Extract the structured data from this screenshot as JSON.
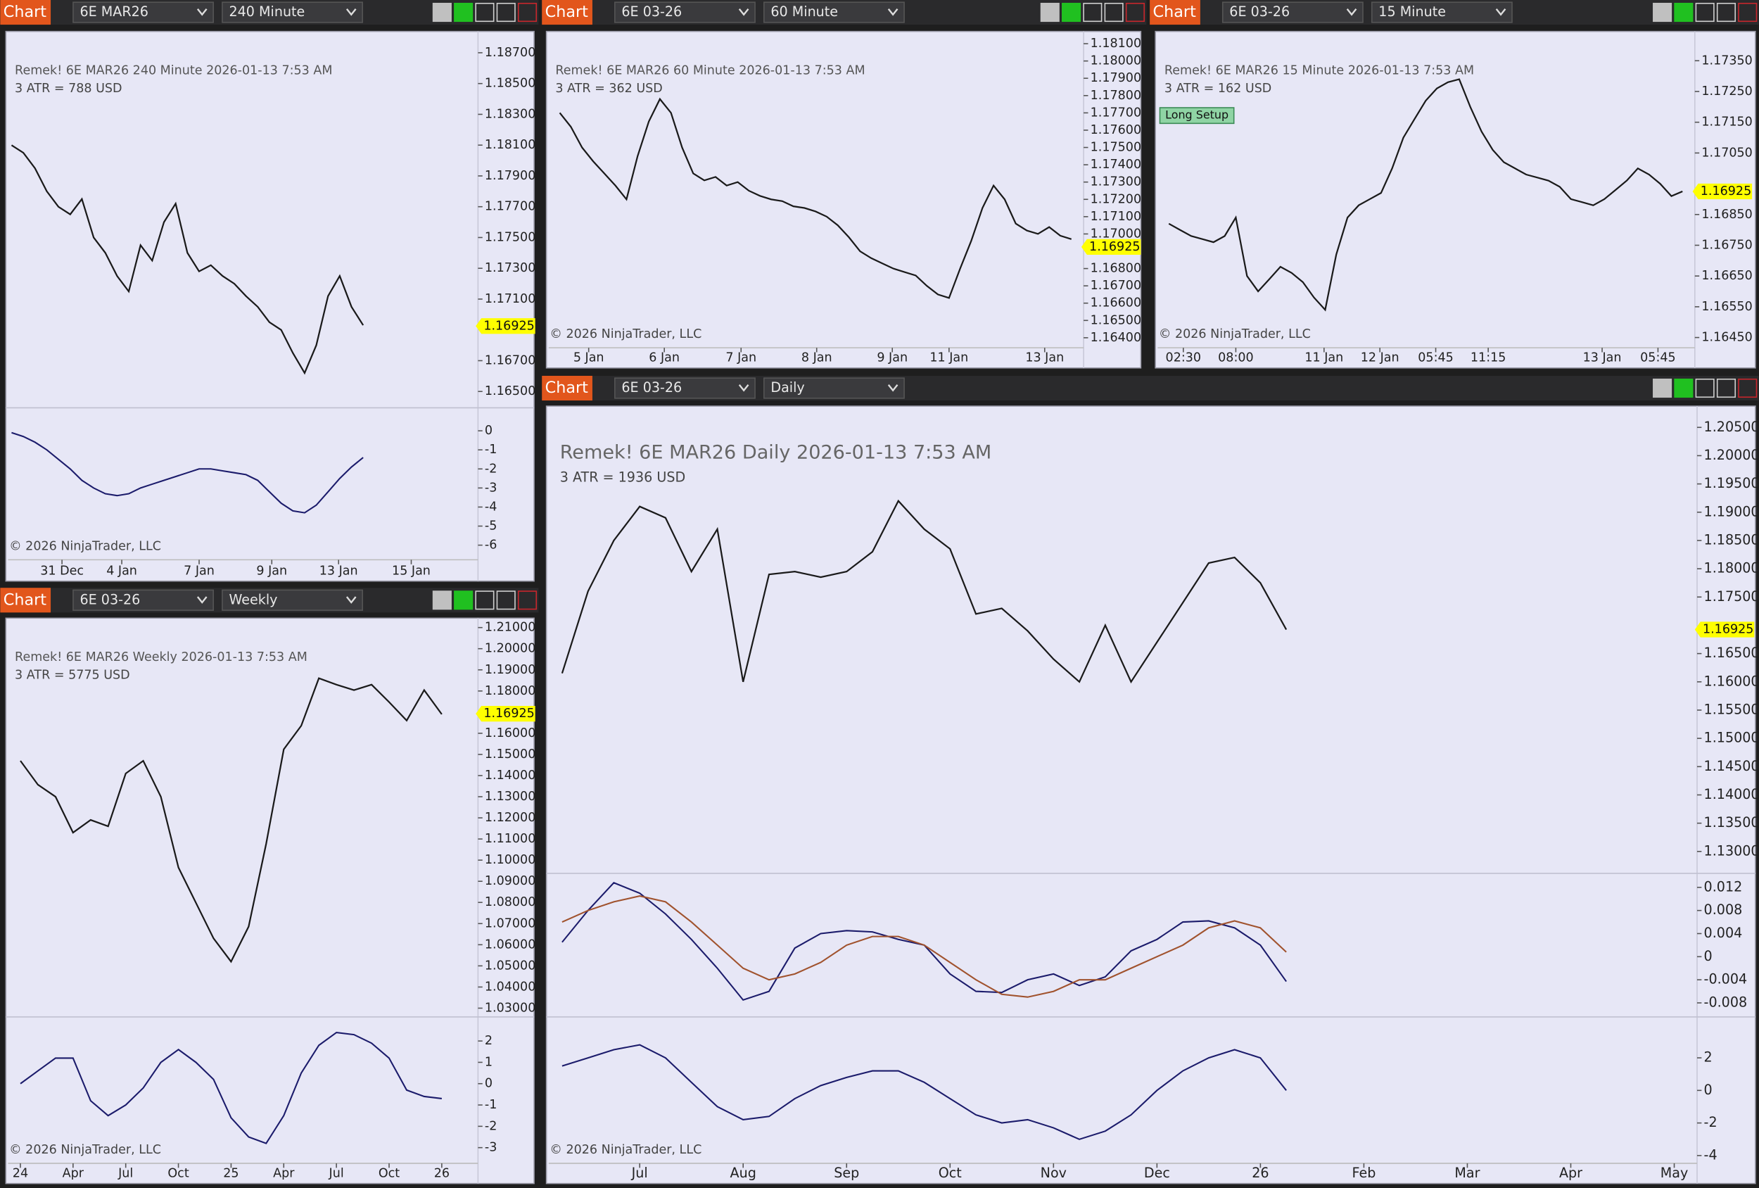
{
  "panels": [
    {
      "tab": "Chart",
      "instrument": "6E MAR26",
      "interval": "240 Minute",
      "header": "Remek!  6E MAR26  240 Minute  2026-01-13 7:53 AM",
      "atr": "3 ATR = 788 USD",
      "copyright": "© 2026 NinjaTrader, LLC",
      "last": 1.16925,
      "ylim": [
        1.16405,
        1.18824
      ],
      "yticks": [
        {
          "value": 1.187,
          "label": "1.18700"
        },
        {
          "value": 1.185,
          "label": "1.18500"
        },
        {
          "value": 1.183,
          "label": "1.18300"
        },
        {
          "value": 1.181,
          "label": "1.18100"
        },
        {
          "value": 1.179,
          "label": "1.17900"
        },
        {
          "value": 1.177,
          "label": "1.17700"
        },
        {
          "value": 1.175,
          "label": "1.17500"
        },
        {
          "value": 1.173,
          "label": "1.17300"
        },
        {
          "value": 1.171,
          "label": "1.17100"
        },
        {
          "value": 1.167,
          "label": "1.16700"
        },
        {
          "value": 1.165,
          "label": "1.16500"
        }
      ],
      "xlim": [
        -0.3,
        39.7
      ],
      "xticks": [
        {
          "value": 4.3,
          "label": "31 Dec"
        },
        {
          "value": 9.4,
          "label": "4 Jan"
        },
        {
          "value": 16.0,
          "label": "7 Jan"
        },
        {
          "value": 22.2,
          "label": "9 Jan"
        },
        {
          "value": 27.9,
          "label": "13 Jan"
        },
        {
          "value": 34.1,
          "label": "15 Jan"
        }
      ],
      "closes": [
        1.181,
        1.1805,
        1.1795,
        1.178,
        1.177,
        1.1765,
        1.1775,
        1.175,
        1.174,
        1.1725,
        1.1715,
        1.1745,
        1.1735,
        1.176,
        1.1772,
        1.174,
        1.1728,
        1.1732,
        1.1725,
        1.172,
        1.1712,
        1.1705,
        1.1695,
        1.169,
        1.1675,
        1.1662,
        1.168,
        1.1712,
        1.1725,
        1.1705,
        1.1693
      ],
      "indicators": [
        {
          "ylim": [
            -6.65,
            1.12
          ],
          "yticks": [
            0,
            -1,
            -2,
            -3,
            -4,
            -5,
            -6
          ],
          "series": [
            {
              "color": "#1b1b6b",
              "values": [
                -0.1,
                -0.3,
                -0.6,
                -1,
                -1.5,
                -2,
                -2.6,
                -3,
                -3.3,
                -3.4,
                -3.3,
                -3,
                -2.8,
                -2.6,
                -2.4,
                -2.2,
                -2,
                -2,
                -2.1,
                -2.2,
                -2.3,
                -2.6,
                -3.2,
                -3.8,
                -4.2,
                -4.3,
                -3.9,
                -3.2,
                -2.5,
                -1.9,
                -1.4
              ]
            }
          ]
        }
      ]
    },
    {
      "tab": "Chart",
      "instrument": "6E 03-26",
      "interval": "60 Minute",
      "header": "Remek!  6E MAR26  60 Minute  2026-01-13 7:53 AM",
      "atr": "3 ATR = 362 USD",
      "copyright": "© 2026 NinjaTrader, LLC",
      "last": 1.16925,
      "ylim": [
        1.16355,
        1.18158
      ],
      "yticks": [
        {
          "value": 1.181,
          "label": "1.18100"
        },
        {
          "value": 1.18,
          "label": "1.18000"
        },
        {
          "value": 1.179,
          "label": "1.17900"
        },
        {
          "value": 1.178,
          "label": "1.17800"
        },
        {
          "value": 1.177,
          "label": "1.17700"
        },
        {
          "value": 1.176,
          "label": "1.17600"
        },
        {
          "value": 1.175,
          "label": "1.17500"
        },
        {
          "value": 1.174,
          "label": "1.17400"
        },
        {
          "value": 1.173,
          "label": "1.17300"
        },
        {
          "value": 1.172,
          "label": "1.17200"
        },
        {
          "value": 1.171,
          "label": "1.17100"
        },
        {
          "value": 1.17,
          "label": "1.17000"
        },
        {
          "value": 1.168,
          "label": "1.16800"
        },
        {
          "value": 1.167,
          "label": "1.16700"
        },
        {
          "value": 1.166,
          "label": "1.16600"
        },
        {
          "value": 1.165,
          "label": "1.16500"
        },
        {
          "value": 1.164,
          "label": "1.16400"
        }
      ],
      "xlim": [
        -1,
        47
      ],
      "xticks": [
        {
          "value": 2.6,
          "label": "5 Jan"
        },
        {
          "value": 9.4,
          "label": "6 Jan"
        },
        {
          "value": 16.3,
          "label": "7 Jan"
        },
        {
          "value": 23.1,
          "label": "8 Jan"
        },
        {
          "value": 29.9,
          "label": "9 Jan"
        },
        {
          "value": 35.0,
          "label": "11 Jan"
        },
        {
          "value": 43.6,
          "label": "13 Jan"
        }
      ],
      "closes": [
        1.177,
        1.1762,
        1.175,
        1.1742,
        1.1735,
        1.1728,
        1.172,
        1.1745,
        1.1765,
        1.1778,
        1.177,
        1.175,
        1.1735,
        1.1731,
        1.1733,
        1.1728,
        1.173,
        1.1725,
        1.1722,
        1.172,
        1.1719,
        1.1716,
        1.1715,
        1.1713,
        1.171,
        1.1705,
        1.1698,
        1.169,
        1.1686,
        1.1683,
        1.168,
        1.1678,
        1.1676,
        1.167,
        1.1665,
        1.1663,
        1.168,
        1.1696,
        1.1715,
        1.1728,
        1.172,
        1.1706,
        1.1702,
        1.17,
        1.1704,
        1.1699,
        1.1697
      ],
      "indicators": []
    },
    {
      "tab": "Chart",
      "instrument": "6E 03-26",
      "interval": "15 Minute",
      "header": "Remek!  6E MAR26  15 Minute  2026-01-13 7:53 AM",
      "atr": "3 ATR = 162 USD",
      "badge": "Long Setup",
      "copyright": "© 2026 NinjaTrader, LLC",
      "last": 1.16925,
      "ylim": [
        1.16424,
        1.17438
      ],
      "yticks": [
        {
          "value": 1.1735,
          "label": "1.17350"
        },
        {
          "value": 1.1725,
          "label": "1.17250"
        },
        {
          "value": 1.1715,
          "label": "1.17150"
        },
        {
          "value": 1.1705,
          "label": "1.17050"
        },
        {
          "value": 1.1685,
          "label": "1.16850"
        },
        {
          "value": 1.1675,
          "label": "1.16750"
        },
        {
          "value": 1.1665,
          "label": "1.16650"
        },
        {
          "value": 1.1655,
          "label": "1.16550"
        },
        {
          "value": 1.1645,
          "label": "1.16450"
        }
      ],
      "xlim": [
        -1,
        47
      ],
      "xticks": [
        {
          "value": 1.3,
          "label": "02:30"
        },
        {
          "value": 6.0,
          "label": "08:00"
        },
        {
          "value": 13.9,
          "label": "11 Jan"
        },
        {
          "value": 18.9,
          "label": "12 Jan"
        },
        {
          "value": 23.9,
          "label": "05:45"
        },
        {
          "value": 28.6,
          "label": "11:15"
        },
        {
          "value": 38.8,
          "label": "13 Jan"
        },
        {
          "value": 43.8,
          "label": "05:45"
        }
      ],
      "closes": [
        1.1682,
        1.168,
        1.1678,
        1.1677,
        1.1676,
        1.1678,
        1.1684,
        1.1665,
        1.166,
        1.1664,
        1.1668,
        1.1666,
        1.1663,
        1.1658,
        1.1654,
        1.1672,
        1.1684,
        1.1688,
        1.169,
        1.1692,
        1.17,
        1.171,
        1.1716,
        1.1722,
        1.1726,
        1.1728,
        1.1729,
        1.172,
        1.1712,
        1.1706,
        1.1702,
        1.17,
        1.1698,
        1.1697,
        1.1696,
        1.1694,
        1.169,
        1.1689,
        1.1688,
        1.169,
        1.1693,
        1.1696,
        1.17,
        1.1698,
        1.1695,
        1.1691,
        1.16925
      ],
      "indicators": []
    },
    {
      "tab": "Chart",
      "instrument": "6E 03-26",
      "interval": "Weekly",
      "header": "Remek!  6E MAR26  Weekly  2026-01-13 7:53 AM",
      "atr": "3 ATR = 5775 USD",
      "copyright": "© 2026 NinjaTrader, LLC",
      "last": 1.16925,
      "ylim": [
        1.02665,
        1.2134
      ],
      "yticks": [
        {
          "value": 1.21,
          "label": "1.21000"
        },
        {
          "value": 1.2,
          "label": "1.20000"
        },
        {
          "value": 1.19,
          "label": "1.19000"
        },
        {
          "value": 1.18,
          "label": "1.18000"
        },
        {
          "value": 1.16,
          "label": "1.16000"
        },
        {
          "value": 1.15,
          "label": "1.15000"
        },
        {
          "value": 1.14,
          "label": "1.14000"
        },
        {
          "value": 1.13,
          "label": "1.13000"
        },
        {
          "value": 1.12,
          "label": "1.12000"
        },
        {
          "value": 1.11,
          "label": "1.11000"
        },
        {
          "value": 1.1,
          "label": "1.10000"
        },
        {
          "value": 1.09,
          "label": "1.09000"
        },
        {
          "value": 1.08,
          "label": "1.08000"
        },
        {
          "value": 1.07,
          "label": "1.07000"
        },
        {
          "value": 1.06,
          "label": "1.06000"
        },
        {
          "value": 1.05,
          "label": "1.05000"
        },
        {
          "value": 1.04,
          "label": "1.04000"
        },
        {
          "value": 1.03,
          "label": "1.03000"
        }
      ],
      "xlim": [
        -0.7,
        26.0
      ],
      "xticks": [
        {
          "value": 0,
          "label": "24"
        },
        {
          "value": 3,
          "label": "Apr"
        },
        {
          "value": 6,
          "label": "Jul"
        },
        {
          "value": 9,
          "label": "Oct"
        },
        {
          "value": 12,
          "label": "25"
        },
        {
          "value": 15,
          "label": "Apr"
        },
        {
          "value": 18,
          "label": "Jul"
        },
        {
          "value": 21,
          "label": "Oct"
        },
        {
          "value": 24,
          "label": "26"
        }
      ],
      "closes": [
        1.147,
        1.1357,
        1.13,
        1.113,
        1.119,
        1.116,
        1.141,
        1.147,
        1.13,
        1.0965,
        1.0798,
        1.063,
        1.052,
        1.0686,
        1.1077,
        1.1524,
        1.1636,
        1.186,
        1.183,
        1.1804,
        1.183,
        1.1748,
        1.166,
        1.1804,
        1.169
      ],
      "indicators": [
        {
          "ylim": [
            -3.63,
            3.05
          ],
          "yticks": [
            2,
            1,
            0,
            -1,
            -2,
            -3
          ],
          "series": [
            {
              "color": "#1b1b6b",
              "values": [
                0,
                0.6,
                1.2,
                1.2,
                -0.8,
                -1.5,
                -1.0,
                -0.2,
                1.0,
                1.6,
                1.0,
                0.2,
                -1.6,
                -2.5,
                -2.8,
                -1.5,
                0.5,
                1.8,
                2.4,
                2.3,
                1.9,
                1.2,
                -0.3,
                -0.6,
                -0.7
              ]
            }
          ]
        }
      ]
    },
    {
      "tab": "Chart",
      "instrument": "6E 03-26",
      "interval": "Daily",
      "header": "Remek!  6E MAR26  Daily  2026-01-13 7:53 AM",
      "atr": "3 ATR = 1936 USD",
      "copyright": "© 2026 NinjaTrader, LLC",
      "last": 1.16925,
      "ylim": [
        1.12623,
        1.20817
      ],
      "yticks": [
        {
          "value": 1.205,
          "label": "1.20500"
        },
        {
          "value": 1.2,
          "label": "1.20000"
        },
        {
          "value": 1.195,
          "label": "1.19500"
        },
        {
          "value": 1.19,
          "label": "1.19000"
        },
        {
          "value": 1.185,
          "label": "1.18500"
        },
        {
          "value": 1.18,
          "label": "1.18000"
        },
        {
          "value": 1.175,
          "label": "1.17500"
        },
        {
          "value": 1.165,
          "label": "1.16500"
        },
        {
          "value": 1.16,
          "label": "1.16000"
        },
        {
          "value": 1.155,
          "label": "1.15500"
        },
        {
          "value": 1.15,
          "label": "1.15000"
        },
        {
          "value": 1.145,
          "label": "1.14500"
        },
        {
          "value": 1.14,
          "label": "1.14000"
        },
        {
          "value": 1.135,
          "label": "1.13500"
        },
        {
          "value": 1.13,
          "label": "1.13000"
        }
      ],
      "xlim": [
        0.12,
        11.21
      ],
      "xticks": [
        {
          "value": 1,
          "label": "Jul"
        },
        {
          "value": 2,
          "label": "Aug"
        },
        {
          "value": 3,
          "label": "Sep"
        },
        {
          "value": 4,
          "label": "Oct"
        },
        {
          "value": 5,
          "label": "Nov"
        },
        {
          "value": 6,
          "label": "Dec"
        },
        {
          "value": 7,
          "label": "26"
        },
        {
          "value": 8,
          "label": "Feb"
        },
        {
          "value": 9,
          "label": "Mar"
        },
        {
          "value": 10,
          "label": "Apr"
        },
        {
          "value": 11,
          "label": "May"
        }
      ],
      "x": [
        0.25,
        0.5,
        0.75,
        1.0,
        1.25,
        1.5,
        1.75,
        2.0,
        2.25,
        2.5,
        2.75,
        3.0,
        3.25,
        3.5,
        3.75,
        4.0,
        4.25,
        4.5,
        4.75,
        5.0,
        5.25,
        5.5,
        5.75,
        6.0,
        6.25,
        6.5,
        6.75,
        7.0,
        7.25
      ],
      "closes": [
        1.1615,
        1.176,
        1.185,
        1.191,
        1.189,
        1.1795,
        1.187,
        1.16,
        1.179,
        1.1795,
        1.1785,
        1.1795,
        1.183,
        1.192,
        1.187,
        1.1835,
        1.172,
        1.173,
        1.169,
        1.164,
        1.16,
        1.17,
        1.16,
        1.167,
        1.174,
        1.181,
        1.182,
        1.1775,
        1.16925
      ],
      "indicators": [
        {
          "ylim": [
            -0.01014,
            0.01414
          ],
          "yticks": [
            0.012,
            0.008,
            0.004,
            0,
            -0.004,
            -0.008
          ],
          "series": [
            {
              "color": "#1b1b6b",
              "values": [
                0.0025,
                0.008,
                0.0128,
                0.011,
                0.0074,
                0.003,
                -0.002,
                -0.0075,
                -0.006,
                0.0015,
                0.004,
                0.0045,
                0.0043,
                0.003,
                0.002,
                -0.003,
                -0.006,
                -0.0062,
                -0.004,
                -0.003,
                -0.005,
                -0.0035,
                0.001,
                0.003,
                0.006,
                0.0062,
                0.005,
                0.002,
                -0.0043
              ]
            },
            {
              "color": "#a0522d",
              "values": [
                0.006,
                0.008,
                0.0095,
                0.0105,
                0.0095,
                0.006,
                0.002,
                -0.002,
                -0.004,
                -0.003,
                -0.001,
                0.002,
                0.0035,
                0.0035,
                0.002,
                -0.001,
                -0.004,
                -0.0065,
                -0.007,
                -0.006,
                -0.004,
                -0.004,
                -0.002,
                0,
                0.002,
                0.005,
                0.0062,
                0.005,
                0.0008
              ]
            }
          ]
        },
        {
          "ylim": [
            -4.34,
            4.41
          ],
          "yticks": [
            2,
            0,
            -2,
            -4
          ],
          "series": [
            {
              "color": "#1b1b6b",
              "values": [
                1.5,
                2,
                2.5,
                2.8,
                2,
                0.5,
                -1,
                -1.8,
                -1.6,
                -0.5,
                0.3,
                0.8,
                1.2,
                1.2,
                0.5,
                -0.5,
                -1.5,
                -2,
                -1.8,
                -2.3,
                -3,
                -2.5,
                -1.5,
                0,
                1.2,
                2,
                2.5,
                2,
                0
              ]
            }
          ]
        }
      ]
    }
  ]
}
